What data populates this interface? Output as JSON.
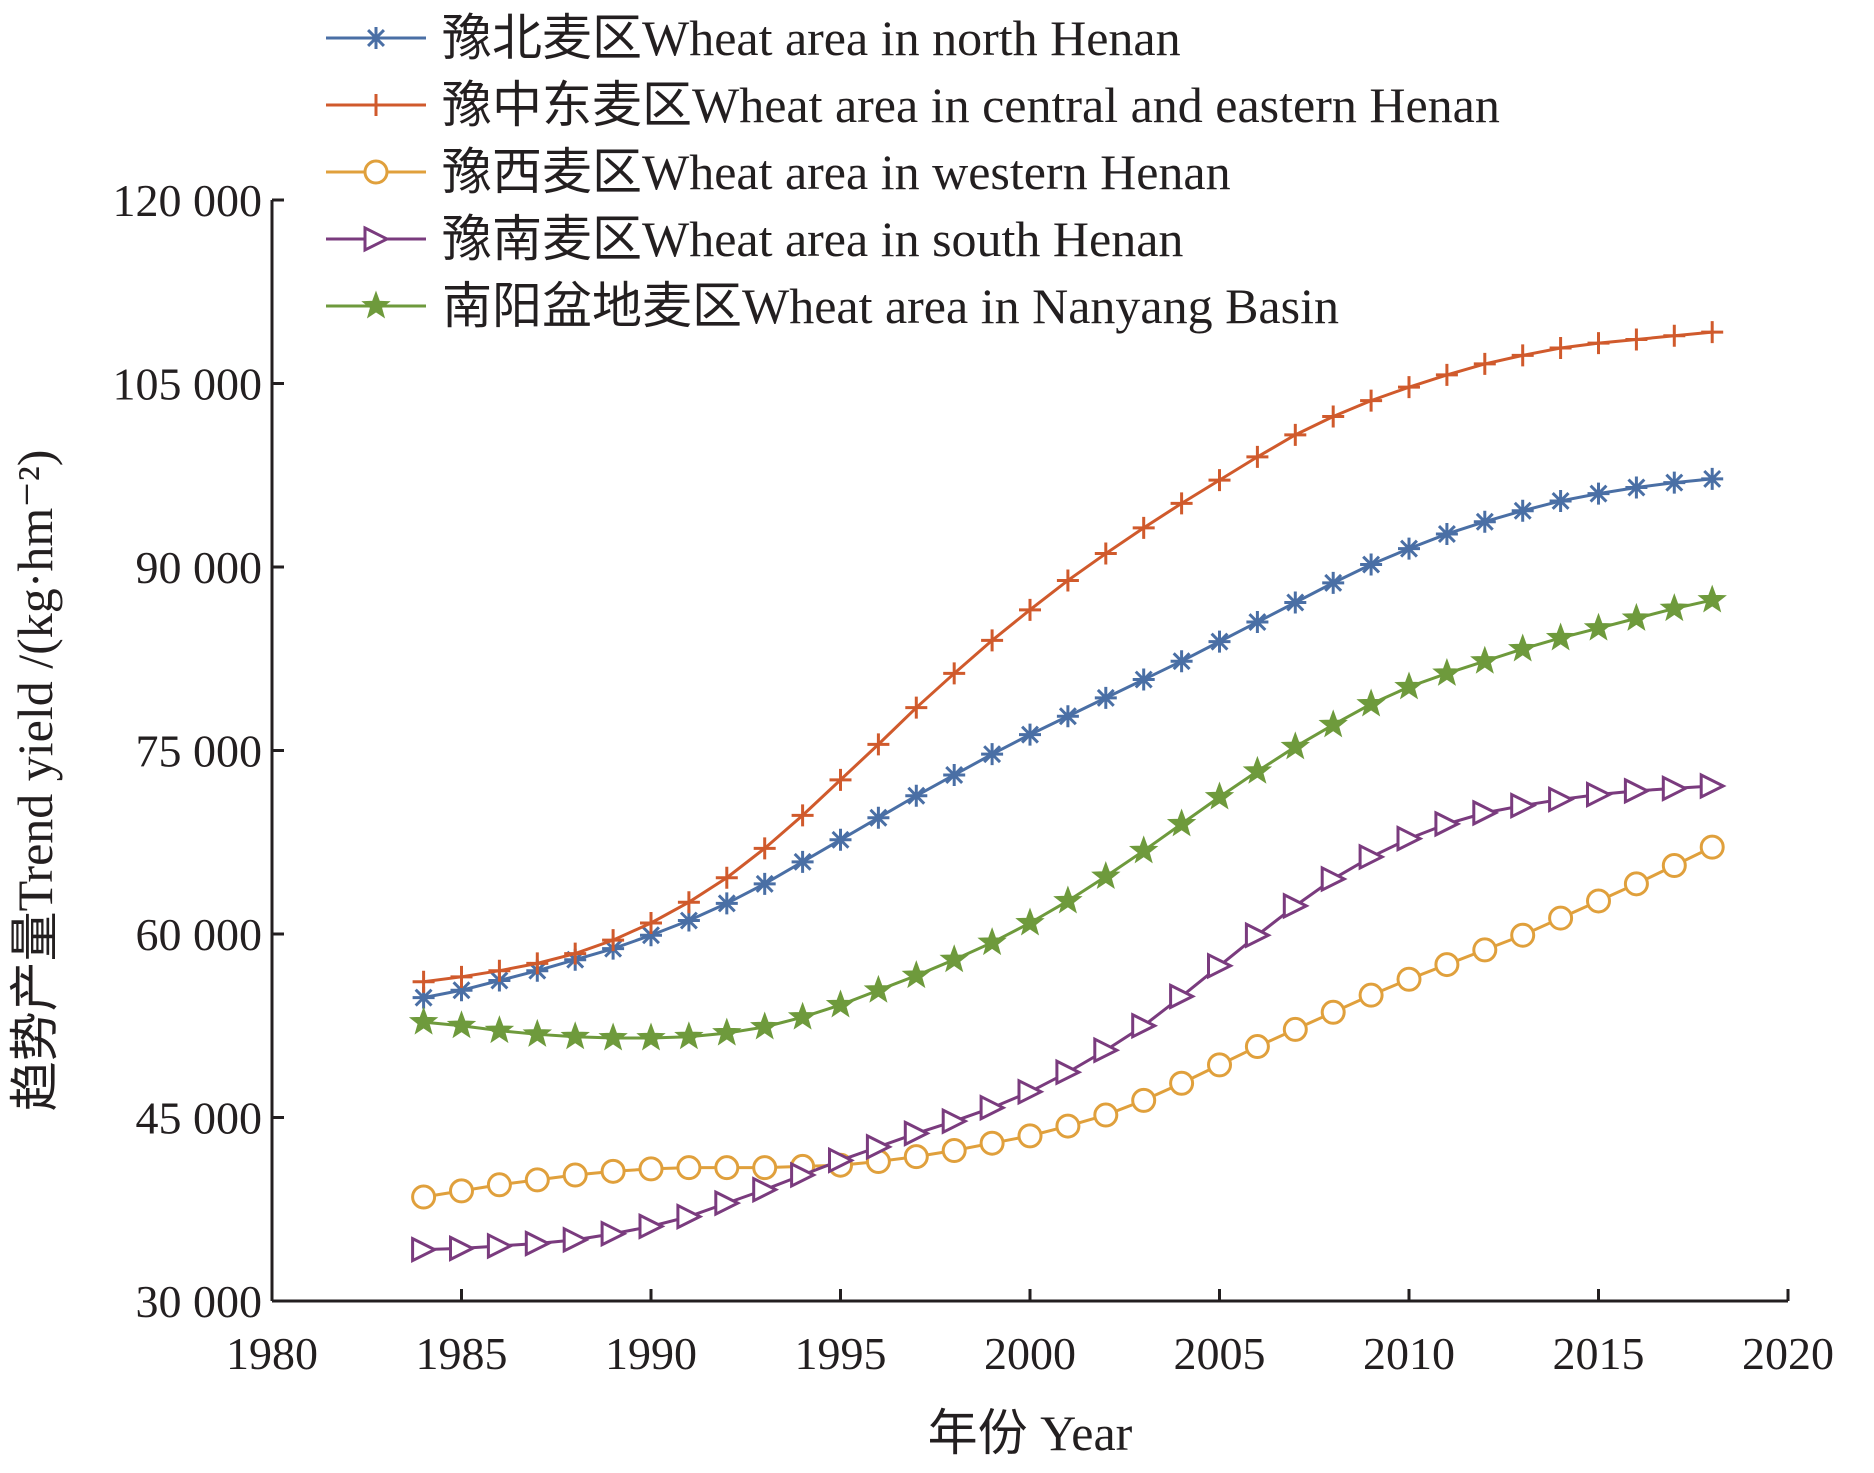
{
  "chart_data": {
    "type": "line",
    "xlabel": "年份 Year",
    "ylabel": "趋势产量Trend yield /(kg·hm⁻²)",
    "xlim": [
      1980,
      2020
    ],
    "ylim": [
      30000,
      120000
    ],
    "x_ticks": [
      1980,
      1985,
      1990,
      1995,
      2000,
      2005,
      2010,
      2015,
      2020
    ],
    "x_tick_labels": [
      "1980",
      "1985",
      "1990",
      "1995",
      "2000",
      "2005",
      "2010",
      "2015",
      "2020"
    ],
    "y_ticks": [
      30000,
      45000,
      60000,
      75000,
      90000,
      105000,
      120000
    ],
    "y_tick_labels": [
      "30 000",
      "45 000",
      "60 000",
      "75 000",
      "90 000",
      "105 000",
      "120 000"
    ],
    "grid": false,
    "legend_position": "top-left",
    "x": [
      1984,
      1985,
      1986,
      1987,
      1988,
      1989,
      1990,
      1991,
      1992,
      1993,
      1994,
      1995,
      1996,
      1997,
      1998,
      1999,
      2000,
      2001,
      2002,
      2003,
      2004,
      2005,
      2006,
      2007,
      2008,
      2009,
      2010,
      2011,
      2012,
      2013,
      2014,
      2015,
      2016,
      2017,
      2018
    ],
    "series": [
      {
        "name": "豫北麦区Wheat area in north Henan",
        "color": "#4a6fa5",
        "marker": "asterisk",
        "values": [
          54800,
          55400,
          56200,
          57000,
          57900,
          58800,
          59900,
          61100,
          62500,
          64100,
          65900,
          67700,
          69500,
          71300,
          73000,
          74700,
          76300,
          77800,
          79300,
          80800,
          82300,
          83900,
          85500,
          87100,
          88700,
          90200,
          91500,
          92700,
          93700,
          94600,
          95400,
          96000,
          96500,
          96900,
          97200
        ]
      },
      {
        "name": "豫中东麦区Wheat area in central and eastern Henan",
        "color": "#d05a2c",
        "marker": "plus",
        "values": [
          56100,
          56500,
          57000,
          57600,
          58400,
          59500,
          60900,
          62600,
          64600,
          67000,
          69700,
          72600,
          75500,
          78500,
          81300,
          84000,
          86500,
          88900,
          91100,
          93200,
          95200,
          97100,
          99000,
          100800,
          102300,
          103600,
          104700,
          105700,
          106600,
          107300,
          107900,
          108300,
          108600,
          108900,
          109200
        ]
      },
      {
        "name": "豫西麦区Wheat area in western Henan",
        "color": "#e0a03c",
        "marker": "circle",
        "values": [
          38500,
          39000,
          39500,
          39900,
          40300,
          40600,
          40800,
          40900,
          40900,
          40900,
          41000,
          41100,
          41400,
          41800,
          42300,
          42900,
          43500,
          44300,
          45200,
          46400,
          47800,
          49300,
          50800,
          52200,
          53600,
          55000,
          56300,
          57500,
          58700,
          59900,
          61300,
          62700,
          64100,
          65600,
          67100
        ]
      },
      {
        "name": "豫南麦区Wheat area in south Henan",
        "color": "#7a3b7e",
        "marker": "triangle-right",
        "values": [
          34200,
          34300,
          34500,
          34700,
          35000,
          35500,
          36100,
          36900,
          38000,
          39100,
          40300,
          41500,
          42600,
          43700,
          44700,
          45800,
          47100,
          48700,
          50500,
          52500,
          54900,
          57400,
          59900,
          62300,
          64500,
          66300,
          67800,
          69000,
          69900,
          70500,
          71000,
          71400,
          71700,
          71900,
          72100
        ]
      },
      {
        "name": "南阳盆地麦区Wheat area in Nanyang Basin",
        "color": "#6e9a3c",
        "marker": "star",
        "values": [
          52800,
          52500,
          52100,
          51800,
          51600,
          51500,
          51500,
          51600,
          51900,
          52400,
          53200,
          54200,
          55400,
          56600,
          57900,
          59300,
          60900,
          62700,
          64700,
          66800,
          69000,
          71200,
          73300,
          75300,
          77100,
          78800,
          80200,
          81300,
          82300,
          83300,
          84200,
          85000,
          85800,
          86600,
          87300
        ]
      }
    ]
  }
}
